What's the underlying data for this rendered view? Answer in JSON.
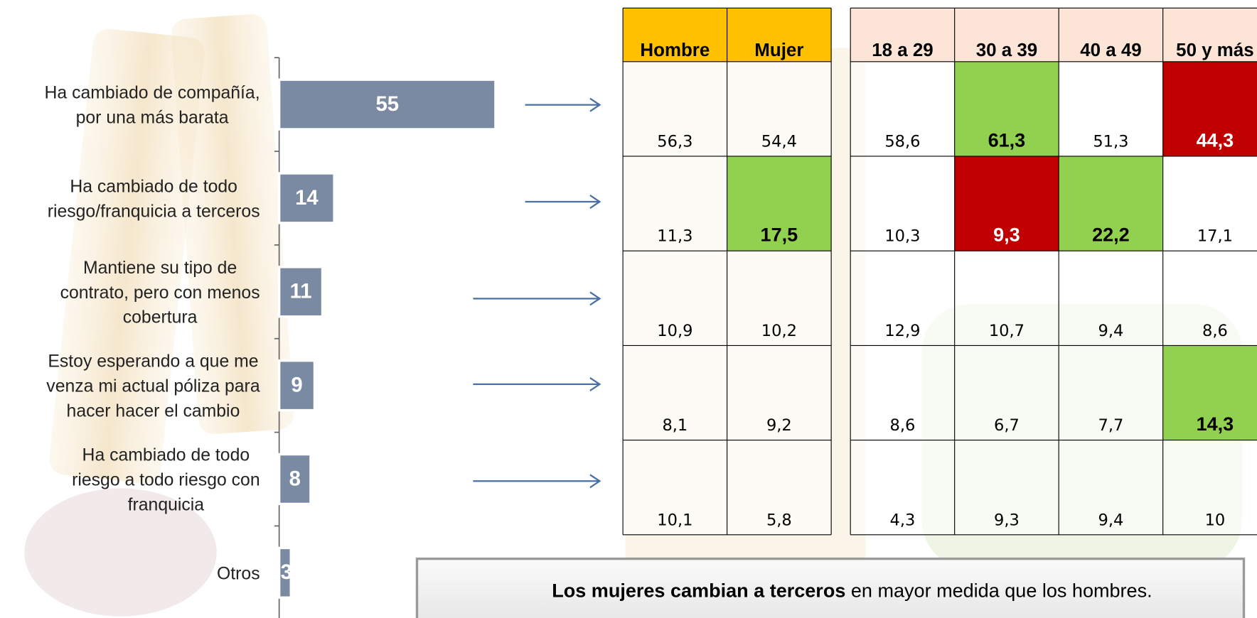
{
  "chart_data": {
    "type": "bar",
    "orientation": "horizontal",
    "categories": [
      "Ha cambiado de compañía,\npor una más barata",
      "Ha cambiado de todo\nriesgo/franquicia a terceros",
      "Mantiene su tipo de\ncontrato, pero con menos\ncobertura",
      "Estoy esperando a que me\nvenza mi actual póliza para\nhacer hacer el cambio",
      "Ha cambiado de todo\nriesgo a todo riesgo con\nfranquicia",
      "Otros"
    ],
    "values": [
      55,
      14,
      11,
      9,
      8,
      3
    ],
    "color": "#7a8aa3"
  },
  "table": {
    "groups": [
      {
        "header_color": "#ffc000",
        "columns": [
          "Hombre",
          "Mujer"
        ]
      },
      {
        "header_color": "#fce4d6",
        "columns": [
          "18 a 29",
          "30 a 39",
          "40 a 49",
          "50 y más"
        ]
      }
    ],
    "rows": [
      [
        "56,3",
        "54,4",
        "58,6",
        "61,3",
        "51,3",
        "44,3"
      ],
      [
        "11,3",
        "17,5",
        "10,3",
        "9,3",
        "22,2",
        "17,1"
      ],
      [
        "10,9",
        "10,2",
        "12,9",
        "10,7",
        "9,4",
        "8,6"
      ],
      [
        "8,1",
        "9,2",
        "8,6",
        "6,7",
        "7,7",
        "14,3"
      ],
      [
        "10,1",
        "5,8",
        "4,3",
        "9,3",
        "9,4",
        "10"
      ]
    ],
    "highlights": [
      {
        "row": 0,
        "col": 3,
        "color": "#92d050",
        "text_color": "#000000"
      },
      {
        "row": 0,
        "col": 5,
        "color": "#c00000",
        "text_color": "#ffffff"
      },
      {
        "row": 1,
        "col": 1,
        "color": "#92d050",
        "text_color": "#000000"
      },
      {
        "row": 1,
        "col": 3,
        "color": "#c00000",
        "text_color": "#ffffff"
      },
      {
        "row": 1,
        "col": 4,
        "color": "#92d050",
        "text_color": "#000000"
      },
      {
        "row": 3,
        "col": 5,
        "color": "#92d050",
        "text_color": "#000000"
      }
    ]
  },
  "note": {
    "bold": "Los mujeres cambian a terceros",
    "rest": " en mayor medida que los hombres."
  }
}
